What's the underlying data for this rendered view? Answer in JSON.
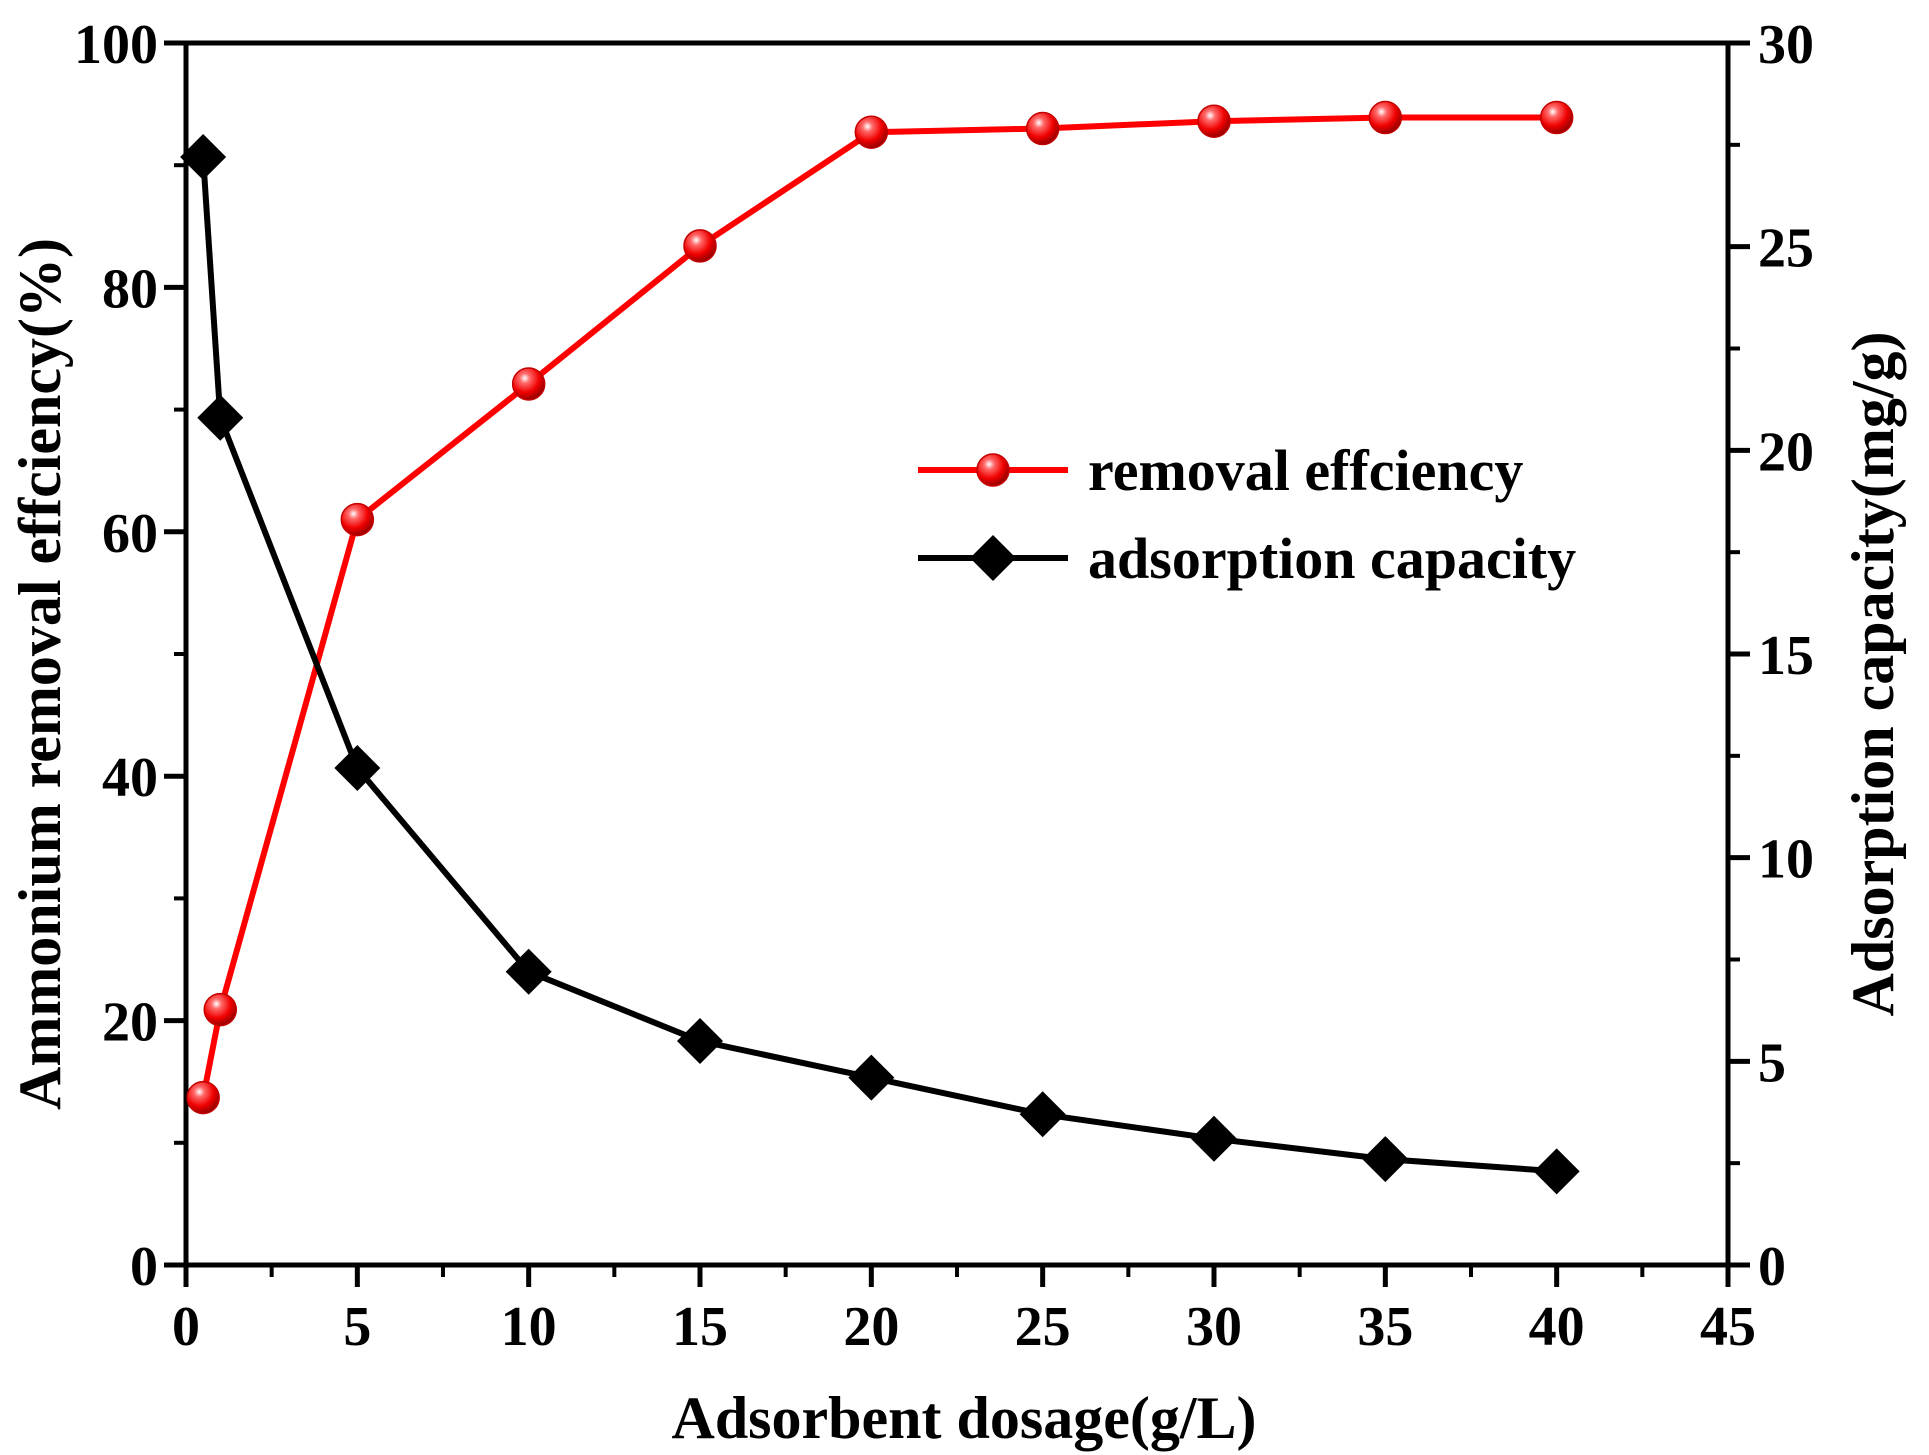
{
  "chart_data": {
    "type": "line",
    "title": "",
    "xlabel": "Adsorbent dosage(g/L)",
    "ylabel": "Ammonium removal effciency(%)",
    "y2label": "Adsorption capacity(mg/g)",
    "xlim": [
      0,
      45
    ],
    "ylim": [
      0,
      100
    ],
    "y2lim": [
      0,
      30
    ],
    "xticks": [
      "0",
      "5",
      "10",
      "15",
      "20",
      "25",
      "30",
      "35",
      "40",
      "45"
    ],
    "yticks": [
      "0",
      "20",
      "40",
      "60",
      "80",
      "100"
    ],
    "y2ticks": [
      "0",
      "5",
      "10",
      "15",
      "20",
      "25",
      "30"
    ],
    "grid": false,
    "legend_position": "center-right",
    "x": [
      0.5,
      1,
      5,
      10,
      15,
      20,
      25,
      30,
      35,
      40
    ],
    "series": [
      {
        "name": "removal effciency",
        "axis": "left",
        "color": "#ff0000",
        "marker": "sphere",
        "values": [
          13.7,
          20.9,
          61.0,
          72.1,
          83.4,
          92.7,
          93.0,
          93.6,
          93.9,
          93.9
        ]
      },
      {
        "name": "adsorption capacity",
        "axis": "right",
        "color": "#000000",
        "marker": "diamond",
        "values": [
          27.2,
          20.8,
          12.2,
          7.2,
          5.5,
          4.6,
          3.7,
          3.1,
          2.6,
          2.3
        ]
      }
    ]
  }
}
